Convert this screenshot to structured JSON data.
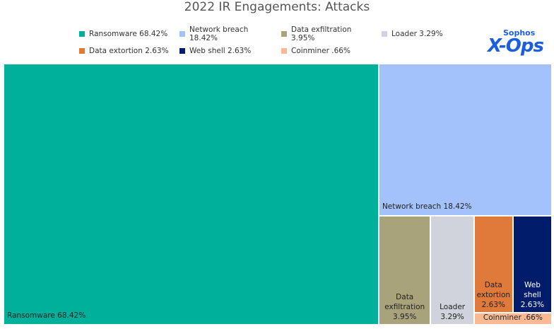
{
  "chart_data": {
    "type": "treemap",
    "title": "2022 IR Engagements: Attacks",
    "categories": [
      "Ransomware 68.42%",
      "Network breach 18.42%",
      "Data exfiltration 3.95%",
      "Loader 3.29%",
      "Data extortion 2.63%",
      "Web shell 2.63%",
      "Coinminer .66%"
    ],
    "values": [
      68.42,
      18.42,
      3.95,
      3.29,
      2.63,
      2.63,
      0.66
    ],
    "colors": [
      "#00b09b",
      "#a3c2fb",
      "#a8a37a",
      "#d1d3dc",
      "#e07a3a",
      "#001c6b",
      "#f8b994"
    ]
  },
  "logo": {
    "brand": "Sophos",
    "name": "X-Ops"
  }
}
